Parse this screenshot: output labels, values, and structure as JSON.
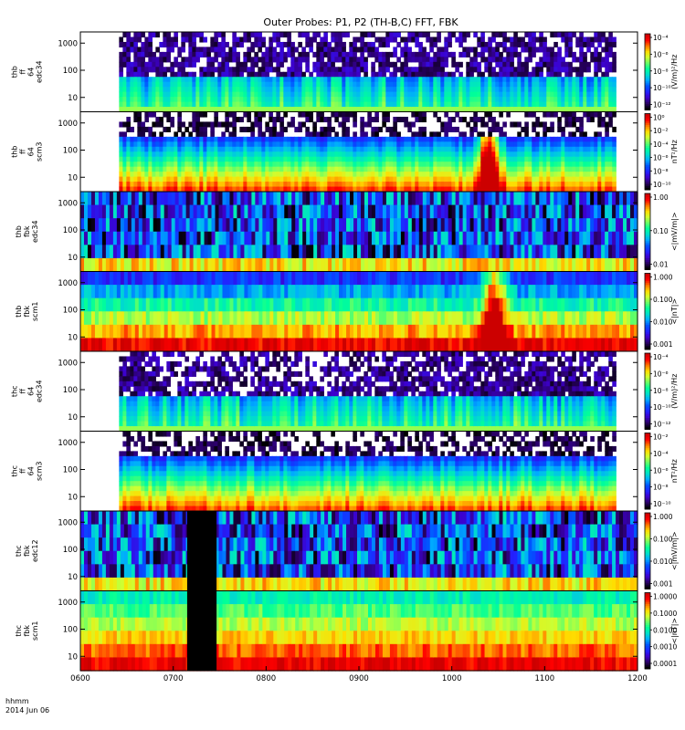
{
  "chart_data": {
    "type": "heatmap",
    "title": "Outer Probes: P1, P2 (TH-B,C) FFT, FBK",
    "x_axis": {
      "range": [
        "06:00",
        "12:00"
      ],
      "tick_labels": [
        "0600",
        "0700",
        "0800",
        "0900",
        "1000",
        "1100",
        "1200"
      ],
      "label_line1": "hhmm",
      "label_line2": "2014 Jun 06"
    },
    "panels": [
      {
        "id": "thb-ff-e34",
        "ylabel": [
          "thb",
          "ff",
          "64",
          "edc34"
        ],
        "y_scale": "log",
        "y_ticks": [
          "10",
          "100",
          "1000"
        ],
        "cb_ticks": [
          "10⁻⁴",
          "10⁻⁶",
          "10⁻⁸",
          "10⁻¹⁰",
          "10⁻¹²"
        ],
        "cb_label": "(V/m)²/Hz",
        "data_start": "06:25",
        "data_end": "11:46",
        "style": "ff-e"
      },
      {
        "id": "thb-ff-s3",
        "ylabel": [
          "thb",
          "ff",
          "64",
          "scm3"
        ],
        "y_scale": "log",
        "y_ticks": [
          "10",
          "100",
          "1000"
        ],
        "cb_ticks": [
          "10⁰",
          "10⁻²",
          "10⁻⁴",
          "10⁻⁶",
          "10⁻⁸",
          "10⁻¹⁰"
        ],
        "cb_label": "nT²/Hz",
        "data_start": "06:25",
        "data_end": "11:46",
        "style": "ff-s"
      },
      {
        "id": "thb-fbk-e34",
        "ylabel": [
          "thb",
          "fbk",
          "edc34"
        ],
        "y_scale": "log",
        "y_ticks": [
          "10",
          "100",
          "1000"
        ],
        "cb_ticks": [
          "1.00",
          "0.10",
          "0.01"
        ],
        "cb_label": "<|mV/m|>",
        "data_start": "06:00",
        "data_end": "12:00",
        "style": "fbk-e"
      },
      {
        "id": "thb-fbk-s1",
        "ylabel": [
          "thb",
          "fbk",
          "scm1"
        ],
        "y_scale": "log",
        "y_ticks": [
          "10",
          "100",
          "1000"
        ],
        "cb_ticks": [
          "1.000",
          "0.100",
          "0.010",
          "0.001"
        ],
        "cb_label": "<|nT|>",
        "data_start": "06:00",
        "data_end": "12:00",
        "style": "fbk-s"
      },
      {
        "id": "thc-ff-e34",
        "ylabel": [
          "thc",
          "ff",
          "64",
          "edc34"
        ],
        "y_scale": "log",
        "y_ticks": [
          "10",
          "100",
          "1000"
        ],
        "cb_ticks": [
          "10⁻⁴",
          "10⁻⁶",
          "10⁻⁸",
          "10⁻¹⁰",
          "10⁻¹²"
        ],
        "cb_label": "(V/m)²/Hz",
        "data_start": "06:25",
        "data_end": "11:46",
        "style": "ff-e2"
      },
      {
        "id": "thc-ff-s3",
        "ylabel": [
          "thc",
          "ff",
          "64",
          "scm3"
        ],
        "y_scale": "log",
        "y_ticks": [
          "10",
          "100",
          "1000"
        ],
        "cb_ticks": [
          "10⁻²",
          "10⁻⁴",
          "10⁻⁶",
          "10⁻⁸",
          "10⁻¹⁰"
        ],
        "cb_label": "nT²/Hz",
        "data_start": "06:25",
        "data_end": "11:46",
        "style": "ff-s2"
      },
      {
        "id": "thc-fbk-e12",
        "ylabel": [
          "thc",
          "fbk",
          "edc12"
        ],
        "y_scale": "log",
        "y_ticks": [
          "10",
          "100",
          "1000"
        ],
        "cb_ticks": [
          "1.000",
          "0.100",
          "0.010",
          "0.001"
        ],
        "cb_label": "<|mV/m|>",
        "data_start": "06:00",
        "data_end": "12:00",
        "style": "fbk-e2",
        "gaps": [
          [
            "07:09",
            "07:28"
          ]
        ]
      },
      {
        "id": "thc-fbk-s1",
        "ylabel": [
          "thc",
          "fbk",
          "scm1"
        ],
        "y_scale": "log",
        "y_ticks": [
          "10",
          "100",
          "1000"
        ],
        "cb_ticks": [
          "1.0000",
          "0.1000",
          "0.0100",
          "0.0010",
          "0.0001"
        ],
        "cb_label": "<|nT|>",
        "data_start": "06:00",
        "data_end": "12:00",
        "style": "fbk-s2",
        "gaps": [
          [
            "07:09",
            "07:28"
          ]
        ]
      }
    ],
    "colorbar_colors": [
      "#ffffff",
      "#cc0000",
      "#ff0000",
      "#ff7a00",
      "#ffdd00",
      "#ccff33",
      "#66ff66",
      "#00ff99",
      "#00ddcc",
      "#00aaff",
      "#0055ff",
      "#2222ff",
      "#3d00cc",
      "#2a0066",
      "#000000"
    ]
  }
}
